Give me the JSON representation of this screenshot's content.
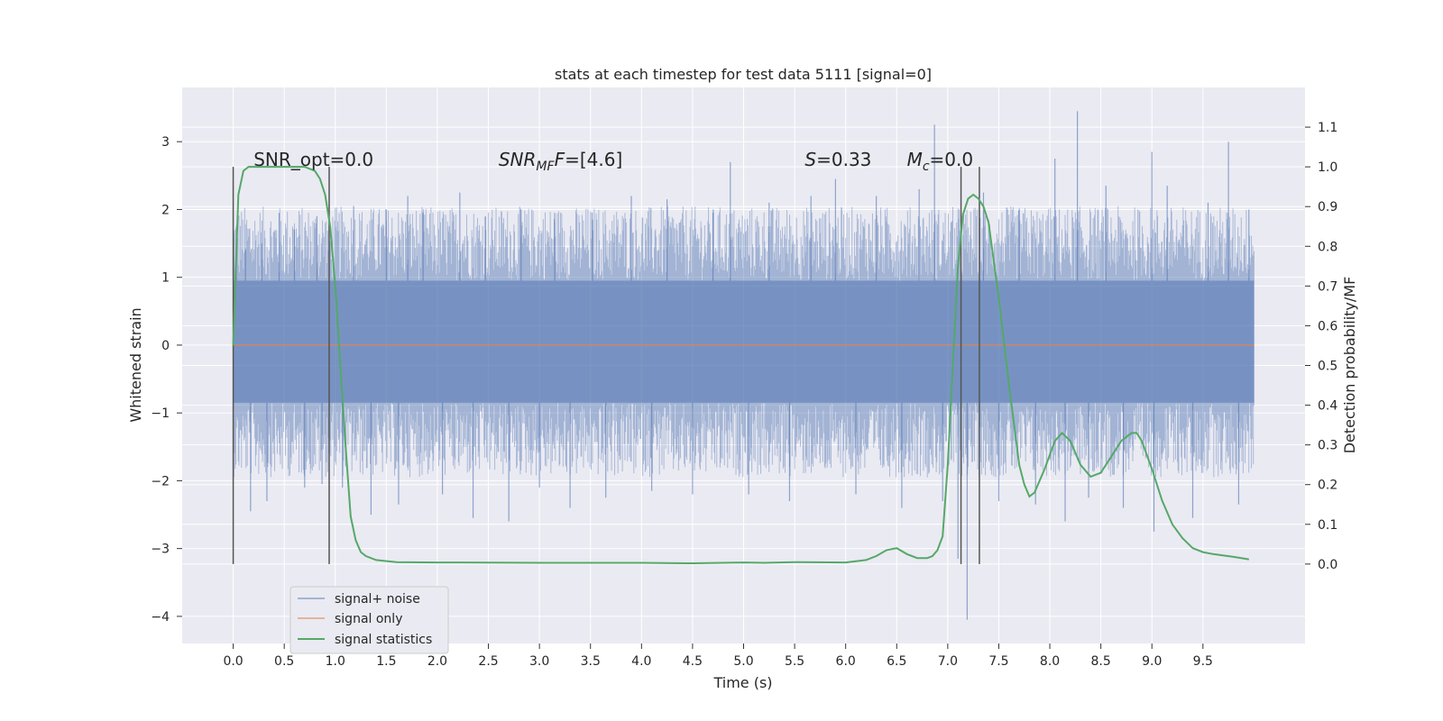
{
  "chart_data": {
    "type": "line",
    "title": "stats at each timestep for test data 5111 [signal=0]",
    "xlabel": "Time (s)",
    "ylabel": "Whitened strain",
    "y2label": "Detection probability/MF",
    "xlim": [
      -0.5,
      10.5
    ],
    "ylim": [
      -4.4,
      3.8
    ],
    "y2lim": [
      -0.2,
      1.2
    ],
    "xticks": [
      "0.0",
      "0.5",
      "1.0",
      "1.5",
      "2.0",
      "2.5",
      "3.0",
      "3.5",
      "4.0",
      "4.5",
      "5.0",
      "5.5",
      "6.0",
      "6.5",
      "7.0",
      "7.5",
      "8.0",
      "8.5",
      "9.0",
      "9.5"
    ],
    "yticks": [
      "3",
      "2",
      "1",
      "0",
      "−1",
      "−2",
      "−3",
      "−4"
    ],
    "y2ticks": [
      "1.1",
      "1.0",
      "0.9",
      "0.8",
      "0.7",
      "0.6",
      "0.5",
      "0.4",
      "0.3",
      "0.2",
      "0.1",
      "0.0"
    ],
    "grid": true,
    "legend_position": "lower-left",
    "colors": {
      "background": "#eaeaf2",
      "noise": "#4c72b0",
      "signal": "#dd8452",
      "stats": "#55a868",
      "vline": "#555555"
    },
    "annotations": [
      {
        "html": "SNR_opt=0.0",
        "x": 0.2
      },
      {
        "html": "<tspan font-style=\"italic\">SNR</tspan><tspan font-style=\"italic\" font-size=\"14\" dy=\"5\">MF</tspan><tspan font-style=\"italic\" dy=\"-5\">F</tspan>=[4.6]",
        "x": 2.6
      },
      {
        "html": "<tspan font-style=\"italic\">S</tspan>=0.33",
        "x": 5.6
      },
      {
        "html": "<tspan font-style=\"italic\">M</tspan><tspan font-style=\"italic\" font-size=\"14\" dy=\"5\">c</tspan><tspan dy=\"-5\">=0.0</tspan>",
        "x": 6.6
      }
    ],
    "vlines": [
      0.0,
      0.94,
      7.13,
      7.31
    ],
    "series": [
      {
        "name": "signal+ noise",
        "x_range": [
          0.0,
          10.0
        ],
        "band": [
          -0.85,
          0.95
        ],
        "spikes": [
          {
            "x": 0.03,
            "y": 1.2
          },
          {
            "x": 0.12,
            "y": 1.4
          },
          {
            "x": 0.17,
            "y": -2.45
          },
          {
            "x": 0.28,
            "y": 1.5
          },
          {
            "x": 0.33,
            "y": -2.3
          },
          {
            "x": 0.45,
            "y": 1.95
          },
          {
            "x": 0.6,
            "y": 1.7
          },
          {
            "x": 0.7,
            "y": -2.1
          },
          {
            "x": 0.82,
            "y": 1.9
          },
          {
            "x": 0.87,
            "y": -2.05
          },
          {
            "x": 1.07,
            "y": -2.1
          },
          {
            "x": 1.18,
            "y": 2.05
          },
          {
            "x": 1.35,
            "y": -2.5
          },
          {
            "x": 1.5,
            "y": 2.0
          },
          {
            "x": 1.62,
            "y": -2.35
          },
          {
            "x": 1.71,
            "y": 2.2
          },
          {
            "x": 1.86,
            "y": 1.95
          },
          {
            "x": 2.05,
            "y": -2.2
          },
          {
            "x": 2.22,
            "y": 2.25
          },
          {
            "x": 2.35,
            "y": -2.55
          },
          {
            "x": 2.47,
            "y": 1.9
          },
          {
            "x": 2.7,
            "y": -2.6
          },
          {
            "x": 2.82,
            "y": 2.0
          },
          {
            "x": 3.0,
            "y": -2.1
          },
          {
            "x": 3.15,
            "y": 1.95
          },
          {
            "x": 3.3,
            "y": -2.4
          },
          {
            "x": 3.52,
            "y": 1.85
          },
          {
            "x": 3.65,
            "y": -2.25
          },
          {
            "x": 3.9,
            "y": 2.2
          },
          {
            "x": 4.1,
            "y": -2.15
          },
          {
            "x": 4.25,
            "y": 2.15
          },
          {
            "x": 4.5,
            "y": -2.2
          },
          {
            "x": 4.7,
            "y": 1.95
          },
          {
            "x": 4.87,
            "y": 2.7
          },
          {
            "x": 5.05,
            "y": -2.2
          },
          {
            "x": 5.25,
            "y": 2.1
          },
          {
            "x": 5.45,
            "y": -2.3
          },
          {
            "x": 5.66,
            "y": 2.2
          },
          {
            "x": 5.9,
            "y": 2.45
          },
          {
            "x": 6.1,
            "y": -2.2
          },
          {
            "x": 6.3,
            "y": 2.2
          },
          {
            "x": 6.55,
            "y": -2.4
          },
          {
            "x": 6.72,
            "y": 2.3
          },
          {
            "x": 6.87,
            "y": 3.25
          },
          {
            "x": 6.95,
            "y": -2.3
          },
          {
            "x": 7.1,
            "y": -3.15
          },
          {
            "x": 7.19,
            "y": -4.05
          },
          {
            "x": 7.35,
            "y": 2.25
          },
          {
            "x": 7.5,
            "y": -2.3
          },
          {
            "x": 7.7,
            "y": 2.0
          },
          {
            "x": 7.86,
            "y": -2.35
          },
          {
            "x": 8.05,
            "y": 2.75
          },
          {
            "x": 8.15,
            "y": -2.6
          },
          {
            "x": 8.27,
            "y": 3.45
          },
          {
            "x": 8.38,
            "y": -2.25
          },
          {
            "x": 8.55,
            "y": 2.35
          },
          {
            "x": 8.72,
            "y": -2.4
          },
          {
            "x": 9.0,
            "y": 2.85
          },
          {
            "x": 9.02,
            "y": -2.75
          },
          {
            "x": 9.15,
            "y": 2.35
          },
          {
            "x": 9.4,
            "y": -2.55
          },
          {
            "x": 9.55,
            "y": 2.1
          },
          {
            "x": 9.75,
            "y": 3.0
          },
          {
            "x": 9.85,
            "y": -2.35
          },
          {
            "x": 9.95,
            "y": 2.0
          }
        ]
      },
      {
        "name": "signal only",
        "x": [
          0.0,
          10.0
        ],
        "y": [
          0.0,
          0.0
        ]
      },
      {
        "name": "signal statistics",
        "axis": "right",
        "x": [
          0.0,
          0.05,
          0.1,
          0.15,
          0.2,
          0.3,
          0.5,
          0.7,
          0.8,
          0.85,
          0.9,
          0.95,
          1.0,
          1.05,
          1.1,
          1.15,
          1.2,
          1.25,
          1.3,
          1.4,
          1.6,
          2.0,
          3.0,
          4.0,
          4.5,
          5.0,
          5.2,
          5.5,
          6.0,
          6.2,
          6.3,
          6.4,
          6.5,
          6.6,
          6.7,
          6.8,
          6.85,
          6.9,
          6.95,
          7.0,
          7.05,
          7.1,
          7.15,
          7.2,
          7.25,
          7.3,
          7.35,
          7.4,
          7.5,
          7.6,
          7.7,
          7.75,
          7.8,
          7.85,
          7.95,
          8.05,
          8.12,
          8.2,
          8.3,
          8.4,
          8.5,
          8.6,
          8.7,
          8.8,
          8.85,
          8.9,
          9.0,
          9.1,
          9.2,
          9.3,
          9.4,
          9.5,
          9.6,
          9.8,
          9.95
        ],
        "y": [
          0.55,
          0.93,
          0.99,
          1.0,
          1.0,
          1.0,
          1.0,
          1.0,
          0.99,
          0.97,
          0.93,
          0.85,
          0.7,
          0.5,
          0.3,
          0.12,
          0.06,
          0.03,
          0.02,
          0.01,
          0.005,
          0.004,
          0.003,
          0.003,
          0.002,
          0.004,
          0.003,
          0.005,
          0.004,
          0.01,
          0.02,
          0.035,
          0.04,
          0.025,
          0.015,
          0.015,
          0.02,
          0.035,
          0.07,
          0.25,
          0.5,
          0.75,
          0.88,
          0.92,
          0.93,
          0.92,
          0.9,
          0.86,
          0.67,
          0.45,
          0.25,
          0.2,
          0.17,
          0.18,
          0.24,
          0.31,
          0.33,
          0.31,
          0.25,
          0.22,
          0.23,
          0.27,
          0.31,
          0.33,
          0.33,
          0.31,
          0.24,
          0.16,
          0.1,
          0.065,
          0.04,
          0.03,
          0.025,
          0.018,
          0.012
        ]
      }
    ]
  }
}
